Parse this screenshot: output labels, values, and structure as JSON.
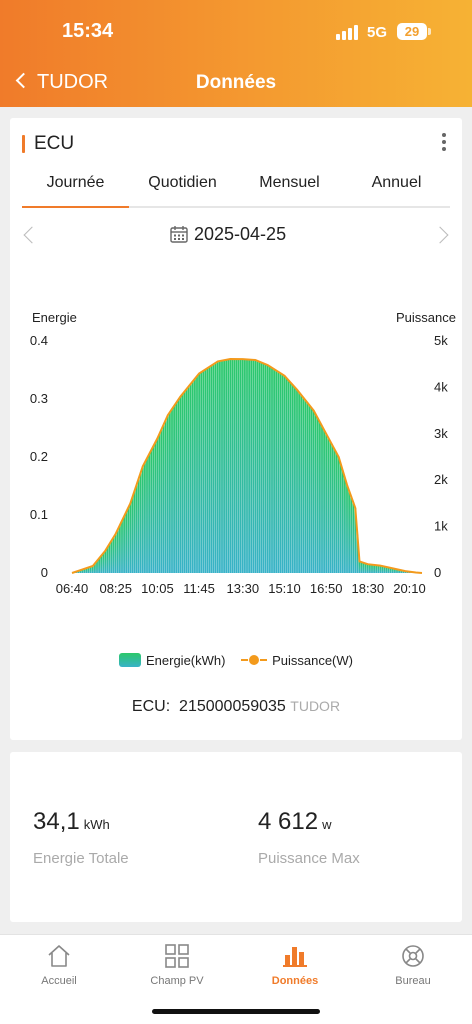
{
  "status": {
    "time": "15:34",
    "network": "5G",
    "battery": "29"
  },
  "header": {
    "back_label": "TUDOR",
    "title": "Données"
  },
  "ecu_card": {
    "title": "ECU",
    "tabs": [
      "Journée",
      "Quotidien",
      "Mensuel",
      "Annuel"
    ],
    "active_tab": "Journée",
    "date": "2025-04-25",
    "serial_label": "ECU:",
    "serial_value": "215000059035",
    "serial_site": "TUDOR"
  },
  "summary": {
    "energy_value": "34,1",
    "energy_unit": "kWh",
    "energy_label": "Energie Totale",
    "power_value": "4 612",
    "power_unit": "w",
    "power_label": "Puissance Max"
  },
  "bottom_nav": {
    "items": [
      {
        "label": "Accueil",
        "icon": "home-icon"
      },
      {
        "label": "Champ PV",
        "icon": "grid-icon"
      },
      {
        "label": "Données",
        "icon": "bar-chart-icon"
      },
      {
        "label": "Bureau",
        "icon": "settings-icon"
      }
    ],
    "active": "Données"
  },
  "colors": {
    "accent": "#f07b2a",
    "energy_top": "#2bc86a",
    "energy_bottom": "#38b2c8",
    "power_line": "#f39a1c"
  },
  "chart_data": {
    "type": "area",
    "left_axis_label": "Energie",
    "right_axis_label": "Puissance",
    "left_ticks": [
      "0",
      "0.1",
      "0.2",
      "0.3",
      "0.4"
    ],
    "right_ticks": [
      "0",
      "1k",
      "2k",
      "3k",
      "4k",
      "5k"
    ],
    "x_ticks": [
      "06:40",
      "08:25",
      "10:05",
      "11:45",
      "13:30",
      "15:10",
      "16:50",
      "18:30",
      "20:10"
    ],
    "ylim_left": [
      0,
      0.4
    ],
    "ylim_right": [
      0,
      5000
    ],
    "xlim": [
      "06:40",
      "20:40"
    ],
    "series": [
      {
        "name": "Energie(kWh)",
        "axis": "left",
        "style": "bars"
      },
      {
        "name": "Puissance(W)",
        "axis": "right",
        "style": "line"
      }
    ],
    "power_points": [
      [
        "06:40",
        0
      ],
      [
        "07:00",
        60
      ],
      [
        "07:30",
        150
      ],
      [
        "08:00",
        480
      ],
      [
        "08:25",
        850
      ],
      [
        "09:00",
        1500
      ],
      [
        "09:30",
        2300
      ],
      [
        "10:05",
        2900
      ],
      [
        "10:30",
        3400
      ],
      [
        "11:00",
        3800
      ],
      [
        "11:45",
        4300
      ],
      [
        "12:30",
        4560
      ],
      [
        "13:00",
        4612
      ],
      [
        "13:30",
        4610
      ],
      [
        "14:00",
        4590
      ],
      [
        "14:30",
        4480
      ],
      [
        "15:10",
        4250
      ],
      [
        "15:40",
        3950
      ],
      [
        "16:20",
        3500
      ],
      [
        "16:50",
        3000
      ],
      [
        "17:20",
        2500
      ],
      [
        "17:40",
        1900
      ],
      [
        "18:00",
        1400
      ],
      [
        "18:10",
        250
      ],
      [
        "18:30",
        190
      ],
      [
        "19:00",
        160
      ],
      [
        "19:30",
        100
      ],
      [
        "20:00",
        40
      ],
      [
        "20:25",
        10
      ],
      [
        "20:40",
        0
      ]
    ],
    "legend_position": "bottom",
    "grid": false
  }
}
